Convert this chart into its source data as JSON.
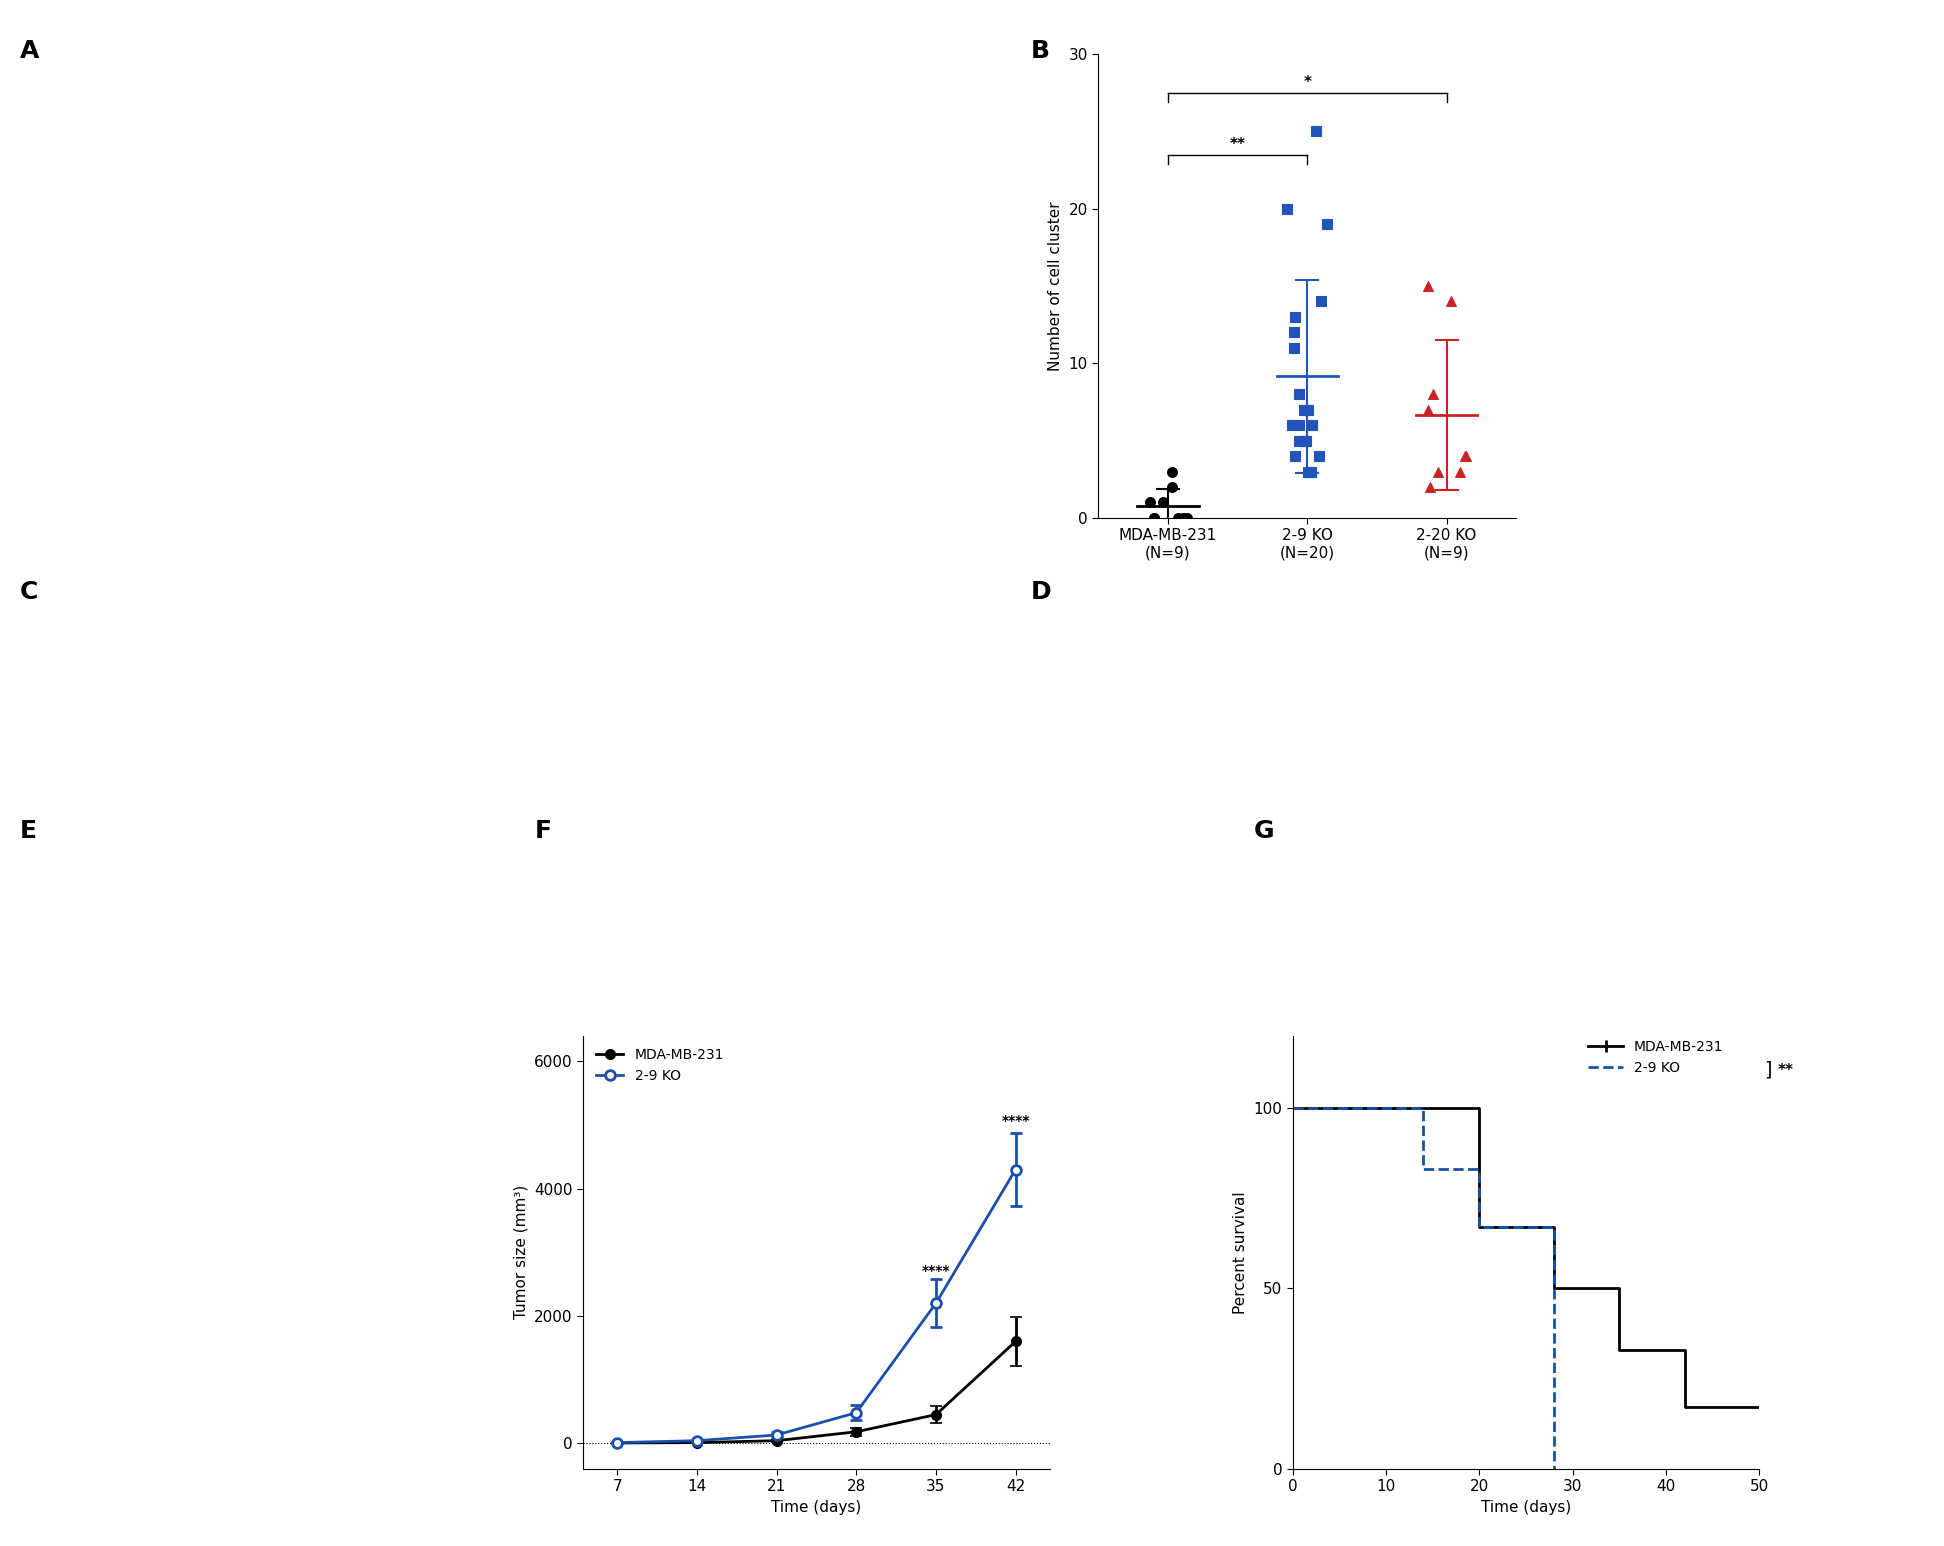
{
  "panel_B": {
    "groups": [
      "MDA-MB-231\n(N=9)",
      "2-9 KO\n(N=20)",
      "2-20 KO\n(N=9)"
    ],
    "colors": [
      "#000000",
      "#2255bb",
      "#cc2222"
    ],
    "markers": [
      "o",
      "s",
      "^"
    ],
    "data": [
      [
        1,
        0,
        0,
        2,
        0,
        0,
        1,
        0,
        3
      ],
      [
        25,
        20,
        19,
        14,
        13,
        12,
        11,
        8,
        7,
        7,
        6,
        6,
        6,
        5,
        5,
        5,
        4,
        4,
        3,
        3
      ],
      [
        15,
        14,
        8,
        7,
        4,
        4,
        3,
        3,
        2
      ]
    ],
    "ylim": [
      0,
      30
    ],
    "yticks": [
      0,
      10,
      20,
      30
    ],
    "ylabel": "Number of cell cluster"
  },
  "panel_F": {
    "time": [
      7,
      14,
      21,
      28,
      35,
      42
    ],
    "mda_mean": [
      5,
      10,
      40,
      180,
      450,
      1600
    ],
    "mda_err": [
      3,
      5,
      15,
      60,
      130,
      380
    ],
    "ko_mean": [
      10,
      40,
      130,
      480,
      2200,
      4300
    ],
    "ko_err": [
      5,
      15,
      40,
      120,
      380,
      580
    ],
    "ylabel": "Tumor size (mm³)",
    "xlabel": "Time (days)",
    "yticks": [
      0,
      2000,
      4000,
      6000
    ],
    "mda_color": "#000000",
    "ko_color": "#1a4faa",
    "legend": [
      "MDA-MB-231",
      "2-9 KO"
    ]
  },
  "panel_G": {
    "mda_x": [
      0,
      20,
      20,
      28,
      28,
      35,
      35,
      42,
      42,
      50
    ],
    "mda_y": [
      100,
      100,
      67,
      67,
      50,
      50,
      33,
      33,
      17,
      17
    ],
    "ko_x": [
      0,
      14,
      14,
      20,
      20,
      28,
      28,
      28
    ],
    "ko_y": [
      100,
      100,
      83,
      83,
      67,
      67,
      0,
      0
    ],
    "xlabel": "Time (days)",
    "ylabel": "Percent survival",
    "xlim": [
      0,
      50
    ],
    "ylim": [
      0,
      120
    ],
    "yticks": [
      0,
      50,
      100
    ],
    "xticks": [
      0,
      10,
      20,
      30,
      40,
      50
    ],
    "mda_color": "#000000",
    "ko_color": "#1a4faa",
    "legend": [
      "MDA-MB-231",
      "2-9 KO"
    ]
  },
  "bg_color": "#ffffff"
}
